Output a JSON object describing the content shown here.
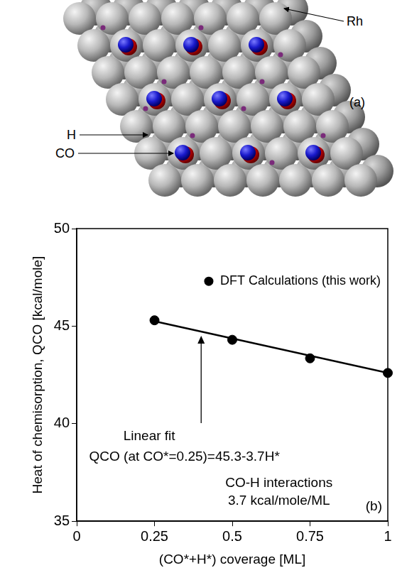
{
  "panel_a": {
    "letter": "(a)",
    "labels": {
      "metal": "Rh",
      "hydrogen": "H",
      "adsorbate": "CO"
    }
  },
  "chart_data": {
    "type": "scatter",
    "letter": "(b)",
    "x_label": "(CO*+H*) coverage [ML]",
    "y_label": "Heat of chemisorption, QCO [kcal/mole]",
    "xlim": [
      0,
      1
    ],
    "xticks": [
      0,
      0.25,
      0.5,
      0.75,
      1
    ],
    "ylim": [
      35,
      50
    ],
    "yticks": [
      35,
      40,
      45,
      50
    ],
    "grid": false,
    "legend": "upper right",
    "series": [
      {
        "name": "DFT Calculations (this work)",
        "type": "scatter",
        "color": "#000000",
        "marker": "circle",
        "x": [
          0.25,
          0.5,
          0.75,
          1
        ],
        "values": [
          45.3,
          44.3,
          43.35,
          42.6
        ]
      },
      {
        "type": "line",
        "color": "#000000",
        "line_style": "solid",
        "x": [
          0.25,
          1
        ],
        "values": [
          45.25,
          42.6
        ]
      }
    ],
    "annotations": {
      "fit_label": "Linear fit",
      "fit_equation": "QCO (at CO*=0.25)=45.3-3.7H*",
      "note_line1": "CO-H interactions",
      "note_line2": "3.7 kcal/mole/ML"
    }
  }
}
